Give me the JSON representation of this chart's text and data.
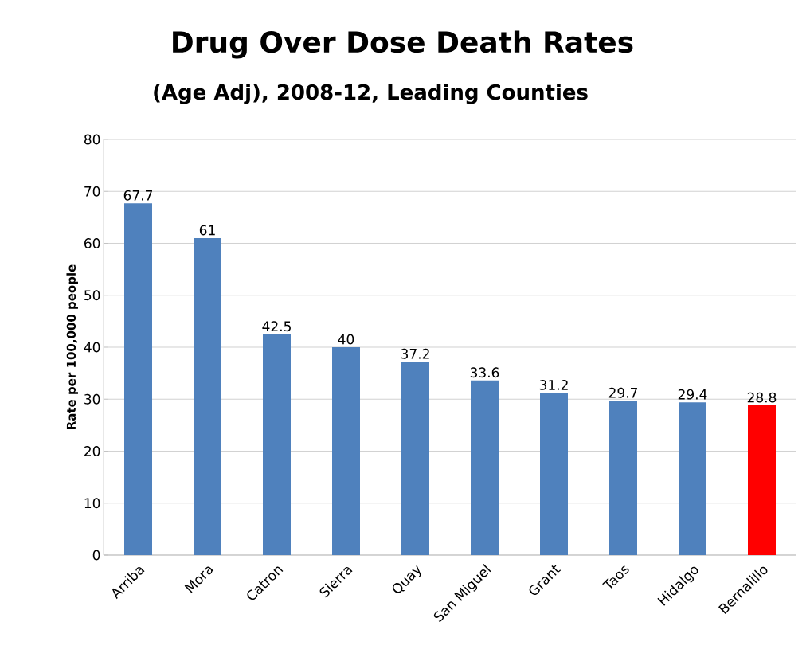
{
  "chart_data": {
    "type": "bar",
    "title": "Drug Over Dose Death Rates",
    "subtitle": "(Age Adj), 2008-12, Leading Counties",
    "ylabel": "Rate per 100,000 people",
    "categories": [
      "Arriba",
      "Mora",
      "Catron",
      "Sierra",
      "Quay",
      "San Miguel",
      "Grant",
      "Taos",
      "Hidalgo",
      "Bernalillo"
    ],
    "values": [
      67.7,
      61,
      42.5,
      40,
      37.2,
      33.6,
      31.2,
      29.7,
      29.4,
      28.8
    ],
    "colors": [
      "#4f81bd",
      "#4f81bd",
      "#4f81bd",
      "#4f81bd",
      "#4f81bd",
      "#4f81bd",
      "#4f81bd",
      "#4f81bd",
      "#4f81bd",
      "#ff0000"
    ],
    "ylim": [
      0,
      80
    ],
    "yticks": [
      0,
      10,
      20,
      30,
      40,
      50,
      60,
      70,
      80
    ],
    "grid": "y",
    "data_labels": true
  }
}
